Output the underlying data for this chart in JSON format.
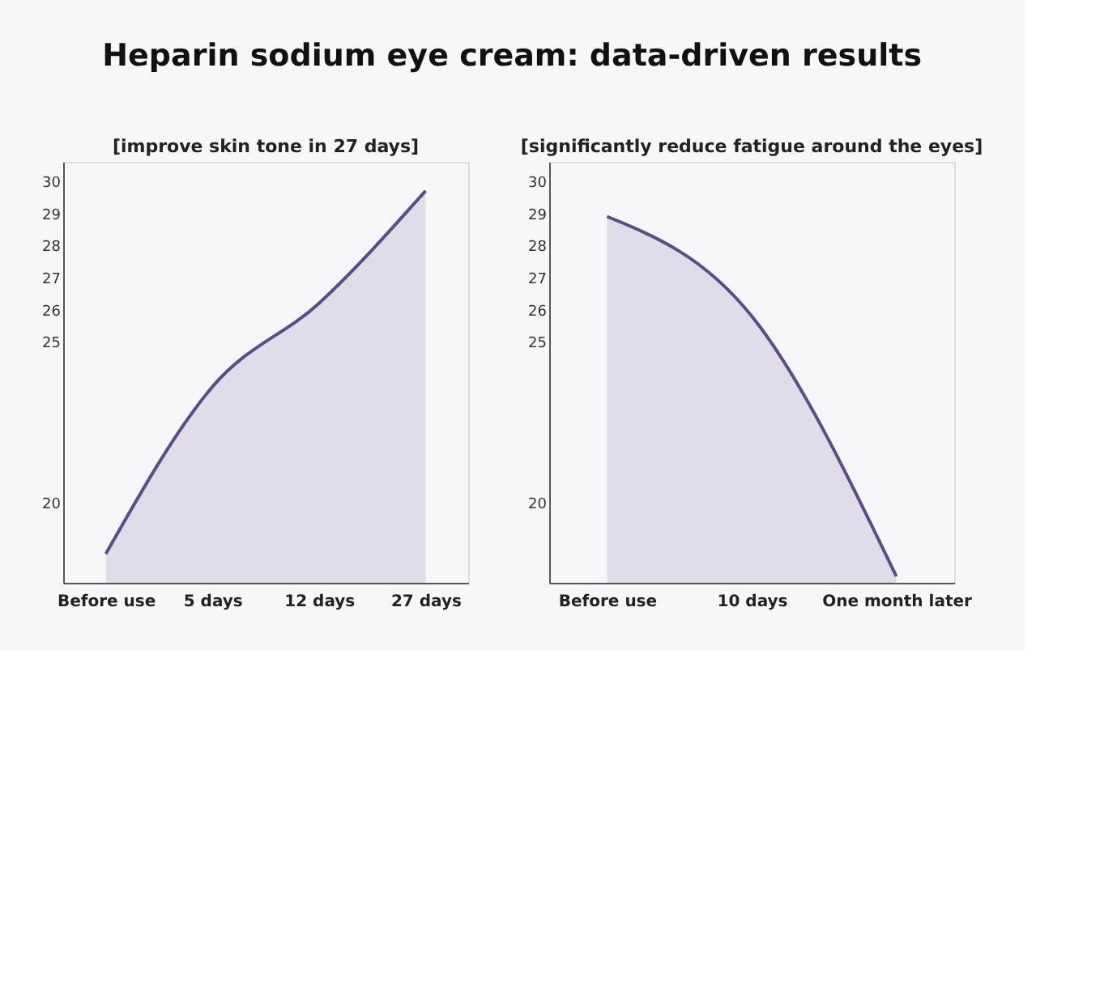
{
  "chart_data": [
    {
      "type": "area",
      "title": "Heparin sodium eye cream: data-driven results",
      "subtitle": "[improve skin tone in 27 days]",
      "categories": [
        "Before use",
        "5 days",
        "12 days",
        "27 days"
      ],
      "series": [
        {
          "color": "#5b4c8c",
          "values": [
            18.4,
            23.6,
            26.2,
            29.7
          ]
        }
      ],
      "ylim": [
        17.5,
        30.6
      ],
      "yticks": [
        20,
        25,
        26,
        27,
        28,
        29,
        30
      ],
      "grid": false
    },
    {
      "type": "area",
      "subtitle": "[significantly reduce fatigue around the eyes]",
      "categories": [
        "Before use",
        "10 days",
        "One month later"
      ],
      "series": [
        {
          "color": "#5b4c8c",
          "values": [
            28.9,
            25.8,
            17.7
          ]
        }
      ],
      "ylim": [
        17.5,
        30.6
      ],
      "yticks": [
        20,
        25,
        26,
        27,
        28,
        29,
        30
      ],
      "grid": false
    }
  ]
}
